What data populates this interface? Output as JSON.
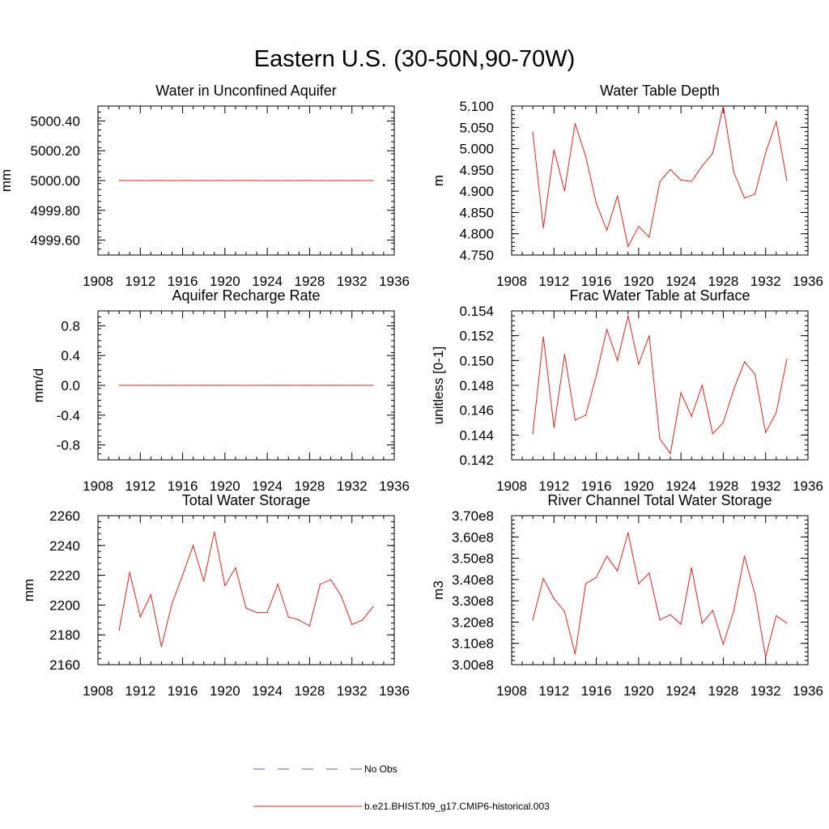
{
  "figure": {
    "title": "Eastern U.S. (30-50N,90-70W)"
  },
  "legend": [
    {
      "label": "No Obs",
      "color": "#5a63b0",
      "dash": "dashed"
    },
    {
      "label": "b.e21.BHIST.f09_g17.CMIP6-historical.003",
      "color": "#e8231e",
      "dash": "solid"
    }
  ],
  "chart_data": [
    {
      "type": "line",
      "title": "Water in Unconfined Aquifer",
      "ylabel": "mm",
      "xlim": [
        1908,
        1936
      ],
      "ylim": [
        4999.5,
        5000.5
      ],
      "xticks": [
        1908,
        1912,
        1916,
        1920,
        1924,
        1928,
        1932,
        1936
      ],
      "yticks": [
        4999.6,
        4999.8,
        5000.0,
        5000.2,
        5000.4
      ],
      "ytick_labels": [
        "4999.60",
        "4999.80",
        "5000.00",
        "5000.20",
        "5000.40"
      ],
      "ytick_minor": 0.04,
      "series": [
        {
          "color": "#e8231e",
          "x": [
            1910,
            1911,
            1912,
            1913,
            1914,
            1915,
            1916,
            1917,
            1918,
            1919,
            1920,
            1921,
            1922,
            1923,
            1924,
            1925,
            1926,
            1927,
            1928,
            1929,
            1930,
            1931,
            1932,
            1933,
            1934
          ],
          "y": [
            5000.0,
            5000.0,
            5000.0,
            5000.0,
            5000.0,
            5000.0,
            5000.0,
            5000.0,
            5000.0,
            5000.0,
            5000.0,
            5000.0,
            5000.0,
            5000.0,
            5000.0,
            5000.0,
            5000.0,
            5000.0,
            5000.0,
            5000.0,
            5000.0,
            5000.0,
            5000.0,
            5000.0,
            5000.0
          ]
        }
      ]
    },
    {
      "type": "line",
      "title": "Water Table Depth",
      "ylabel": "m",
      "xlim": [
        1908,
        1936
      ],
      "ylim": [
        4.75,
        5.1
      ],
      "xticks": [
        1908,
        1912,
        1916,
        1920,
        1924,
        1928,
        1932,
        1936
      ],
      "yticks": [
        4.75,
        4.8,
        4.85,
        4.9,
        4.95,
        5.0,
        5.05,
        5.1
      ],
      "ytick_labels": [
        "4.750",
        "4.800",
        "4.850",
        "4.900",
        "4.950",
        "5.000",
        "5.050",
        "5.100"
      ],
      "ytick_minor": 0.01,
      "series": [
        {
          "color": "#e8231e",
          "x": [
            1910,
            1911,
            1912,
            1913,
            1914,
            1915,
            1916,
            1917,
            1918,
            1919,
            1920,
            1921,
            1922,
            1923,
            1924,
            1925,
            1926,
            1927,
            1928,
            1929,
            1930,
            1931,
            1932,
            1933,
            1934
          ],
          "y": [
            5.038,
            4.814,
            4.997,
            4.901,
            5.059,
            4.982,
            4.871,
            4.808,
            4.889,
            4.77,
            4.817,
            4.792,
            4.922,
            4.951,
            4.926,
            4.923,
            4.959,
            4.989,
            5.1,
            4.944,
            4.884,
            4.893,
            4.99,
            5.064,
            4.925
          ]
        }
      ]
    },
    {
      "type": "line",
      "title": "Aquifer Recharge Rate",
      "ylabel": "mm/d",
      "xlim": [
        1908,
        1936
      ],
      "ylim": [
        -1.0,
        1.0
      ],
      "xticks": [
        1908,
        1912,
        1916,
        1920,
        1924,
        1928,
        1932,
        1936
      ],
      "yticks": [
        -0.8,
        -0.4,
        0.0,
        0.4,
        0.8
      ],
      "ytick_labels": [
        "-0.8",
        "-0.4",
        "0.0",
        "0.4",
        "0.8"
      ],
      "ytick_minor": 0.08,
      "series": [
        {
          "color": "#e8231e",
          "x": [
            1910,
            1911,
            1912,
            1913,
            1914,
            1915,
            1916,
            1917,
            1918,
            1919,
            1920,
            1921,
            1922,
            1923,
            1924,
            1925,
            1926,
            1927,
            1928,
            1929,
            1930,
            1931,
            1932,
            1933,
            1934
          ],
          "y": [
            0.0,
            0.0,
            0.0,
            0.0,
            0.0,
            0.0,
            0.0,
            0.0,
            0.0,
            0.0,
            0.0,
            0.0,
            0.0,
            0.0,
            0.0,
            0.0,
            0.0,
            0.0,
            0.0,
            0.0,
            0.0,
            0.0,
            0.0,
            0.0,
            0.0
          ]
        }
      ]
    },
    {
      "type": "line",
      "title": "Frac Water Table at Surface",
      "ylabel": "unitless [0-1]",
      "xlim": [
        1908,
        1936
      ],
      "ylim": [
        0.142,
        0.154
      ],
      "xticks": [
        1908,
        1912,
        1916,
        1920,
        1924,
        1928,
        1932,
        1936
      ],
      "yticks": [
        0.142,
        0.144,
        0.146,
        0.148,
        0.15,
        0.152,
        0.154
      ],
      "ytick_labels": [
        "0.142",
        "0.144",
        "0.146",
        "0.148",
        "0.150",
        "0.152",
        "0.154"
      ],
      "ytick_minor": 0.0004,
      "series": [
        {
          "color": "#e8231e",
          "x": [
            1910,
            1911,
            1912,
            1913,
            1914,
            1915,
            1916,
            1917,
            1918,
            1919,
            1920,
            1921,
            1922,
            1923,
            1924,
            1925,
            1926,
            1927,
            1928,
            1929,
            1930,
            1931,
            1932,
            1933,
            1934
          ],
          "y": [
            0.1441,
            0.1519,
            0.1446,
            0.1505,
            0.1452,
            0.1456,
            0.1488,
            0.1525,
            0.15,
            0.1536,
            0.1497,
            0.152,
            0.1437,
            0.1425,
            0.1474,
            0.1455,
            0.148,
            0.1441,
            0.145,
            0.1477,
            0.1499,
            0.1489,
            0.1442,
            0.1458,
            0.1501
          ]
        }
      ]
    },
    {
      "type": "line",
      "title": "Total Water Storage",
      "ylabel": "mm",
      "xlim": [
        1908,
        1936
      ],
      "ylim": [
        2160,
        2260
      ],
      "xticks": [
        1908,
        1912,
        1916,
        1920,
        1924,
        1928,
        1932,
        1936
      ],
      "yticks": [
        2160,
        2180,
        2200,
        2220,
        2240,
        2260
      ],
      "ytick_labels": [
        "2160",
        "2180",
        "2200",
        "2220",
        "2240",
        "2260"
      ],
      "ytick_minor": 4,
      "series": [
        {
          "color": "#e8231e",
          "x": [
            1910,
            1911,
            1912,
            1913,
            1914,
            1915,
            1916,
            1917,
            1918,
            1919,
            1920,
            1921,
            1922,
            1923,
            1924,
            1925,
            1926,
            1927,
            1928,
            1929,
            1930,
            1931,
            1932,
            1933,
            1934
          ],
          "y": [
            2183,
            2222,
            2192,
            2207,
            2172,
            2201,
            2220,
            2240,
            2216,
            2249,
            2213,
            2225,
            2198,
            2195,
            2195,
            2214,
            2192,
            2190,
            2186,
            2214,
            2217,
            2206,
            2187,
            2190,
            2199
          ]
        }
      ]
    },
    {
      "type": "line",
      "title": "River Channel Total Water Storage",
      "ylabel": "m3",
      "xlim": [
        1908,
        1936
      ],
      "ylim": [
        300000000,
        370000000
      ],
      "xticks": [
        1908,
        1912,
        1916,
        1920,
        1924,
        1928,
        1932,
        1936
      ],
      "yticks": [
        300000000,
        310000000,
        320000000,
        330000000,
        340000000,
        350000000,
        360000000,
        370000000
      ],
      "ytick_labels": [
        "3.00e8",
        "3.10e8",
        "3.20e8",
        "3.30e8",
        "3.40e8",
        "3.50e8",
        "3.60e8",
        "3.70e8"
      ],
      "ytick_minor": 2000000,
      "series": [
        {
          "color": "#e8231e",
          "x": [
            1910,
            1911,
            1912,
            1913,
            1914,
            1915,
            1916,
            1917,
            1918,
            1919,
            1920,
            1921,
            1922,
            1923,
            1924,
            1925,
            1926,
            1927,
            1928,
            1929,
            1930,
            1931,
            1932,
            1933,
            1934
          ],
          "y": [
            321000000,
            340500000,
            331000000,
            325000000,
            305000000,
            338000000,
            341000000,
            351000000,
            344000000,
            362000000,
            338000000,
            343000000,
            321000000,
            323500000,
            319000000,
            345500000,
            319500000,
            325500000,
            309500000,
            325500000,
            351000000,
            333000000,
            303500000,
            323000000,
            319500000
          ]
        }
      ]
    }
  ]
}
